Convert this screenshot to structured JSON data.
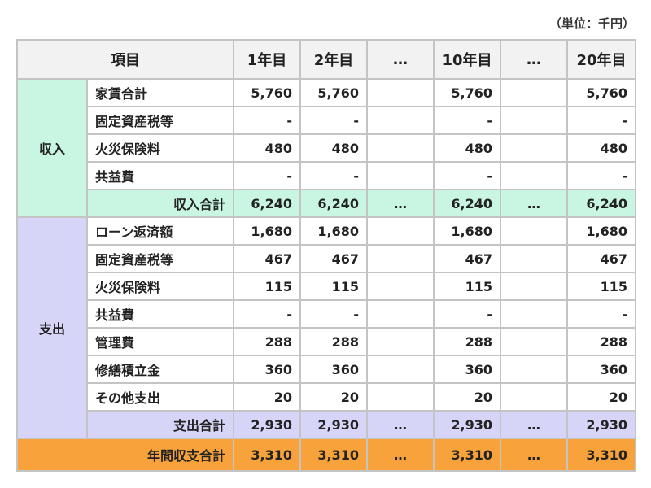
{
  "unit_note": "（単位：千円）",
  "header": {
    "item": "項目",
    "years": [
      "1年目",
      "2年目",
      "…",
      "10年目",
      "…",
      "20年目"
    ]
  },
  "income": {
    "category": "収入",
    "rows": [
      {
        "label": "家賃合計",
        "values": [
          "5,760",
          "5,760",
          "",
          "5,760",
          "",
          "5,760"
        ]
      },
      {
        "label": "固定資産税等",
        "values": [
          "-",
          "-",
          "",
          "-",
          "",
          "-"
        ]
      },
      {
        "label": "火災保険料",
        "values": [
          "480",
          "480",
          "",
          "480",
          "",
          "480"
        ]
      },
      {
        "label": "共益費",
        "values": [
          "-",
          "-",
          "",
          "-",
          "",
          "-"
        ]
      }
    ],
    "total": {
      "label": "収入合計",
      "values": [
        "6,240",
        "6,240",
        "…",
        "6,240",
        "…",
        "6,240"
      ]
    }
  },
  "expense": {
    "category": "支出",
    "rows": [
      {
        "label": "ローン返済額",
        "values": [
          "1,680",
          "1,680",
          "",
          "1,680",
          "",
          "1,680"
        ]
      },
      {
        "label": "固定資産税等",
        "values": [
          "467",
          "467",
          "",
          "467",
          "",
          "467"
        ]
      },
      {
        "label": "火災保険料",
        "values": [
          "115",
          "115",
          "",
          "115",
          "",
          "115"
        ]
      },
      {
        "label": "共益費",
        "values": [
          "-",
          "-",
          "",
          "-",
          "",
          "-"
        ]
      },
      {
        "label": "管理費",
        "values": [
          "288",
          "288",
          "",
          "288",
          "",
          "288"
        ]
      },
      {
        "label": "修繕積立金",
        "values": [
          "360",
          "360",
          "",
          "360",
          "",
          "360"
        ]
      },
      {
        "label": "その他支出",
        "values": [
          "20",
          "20",
          "",
          "20",
          "",
          "20"
        ]
      }
    ],
    "total": {
      "label": "支出合計",
      "values": [
        "2,930",
        "2,930",
        "…",
        "2,930",
        "…",
        "2,930"
      ]
    }
  },
  "net": {
    "label": "年間収支合計",
    "values": [
      "3,310",
      "3,310",
      "…",
      "3,310",
      "…",
      "3,310"
    ]
  },
  "colors": {
    "income_bg": "#c9f6e2",
    "expense_bg": "#d6d5f8",
    "net_bg": "#f7a23a",
    "header_bg": "#f2f2f2",
    "border": "#c4c4c4"
  }
}
